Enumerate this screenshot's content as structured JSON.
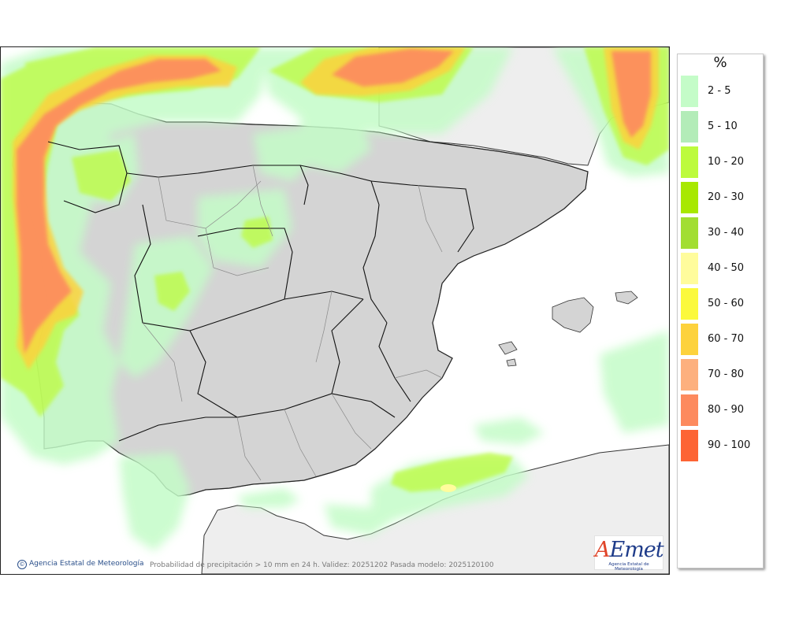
{
  "legend": {
    "unit": "%",
    "items": [
      {
        "label": "2 - 5",
        "color": "#c4fcc8"
      },
      {
        "label": "5 - 10",
        "color": "#b3ecb8"
      },
      {
        "label": "10 - 20",
        "color": "#bdfb3c"
      },
      {
        "label": "20 - 30",
        "color": "#a8e800"
      },
      {
        "label": "30 - 40",
        "color": "#a2de32"
      },
      {
        "label": "40 - 50",
        "color": "#fffc9c"
      },
      {
        "label": "50 - 60",
        "color": "#fbf93c"
      },
      {
        "label": "60 - 70",
        "color": "#fdd23c"
      },
      {
        "label": "70 - 80",
        "color": "#fdb07e"
      },
      {
        "label": "80 - 90",
        "color": "#fd8a5e"
      },
      {
        "label": "90 - 100",
        "color": "#fd6434"
      }
    ]
  },
  "credit": "Agencia Estatal de Meteorología",
  "caption": "Probabilidad de precipitación > 10 mm en 24 h. Validez: 20251202 Pasada modelo: 2025120100",
  "logo": {
    "text": "AEmet",
    "first_letter": "A",
    "rest": "Emet",
    "subtitle": "Agencia Estatal de Meteorología"
  },
  "map": {
    "sea_color": "#ffffff",
    "land_color": "#d4d4d4",
    "foreign_land_color": "#eeeeee"
  }
}
